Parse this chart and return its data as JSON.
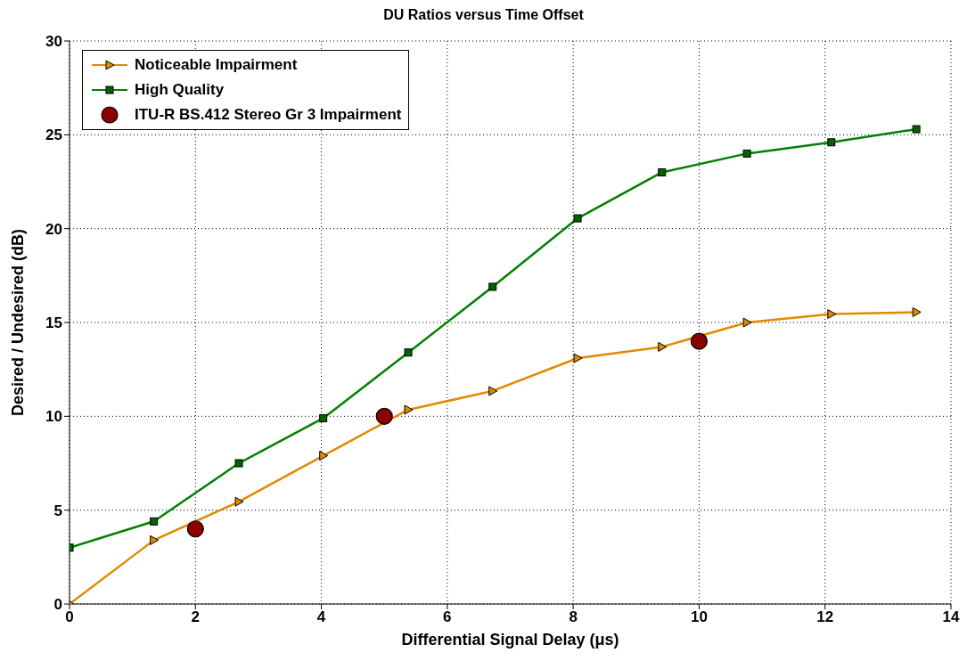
{
  "chart_data": {
    "type": "line",
    "title": "DU Ratios versus Time Offset",
    "xlabel": "Differential Signal Delay (μs)",
    "ylabel": "Desired / Undesired (dB)",
    "xlim": [
      0,
      14
    ],
    "xticks": [
      0,
      2,
      4,
      6,
      8,
      10,
      12,
      14
    ],
    "ylim": [
      0,
      30
    ],
    "yticks": [
      0,
      5,
      10,
      15,
      20,
      25,
      30
    ],
    "grid": true,
    "legend": "top left",
    "line_style": "solid",
    "series": [
      {
        "name": "Noticeable Impairment",
        "color": "#e08a00",
        "marker": "triangle",
        "x": [
          0,
          1.34,
          2.69,
          4.03,
          5.38,
          6.72,
          8.07,
          9.41,
          10.76,
          12.1,
          13.45
        ],
        "values": [
          0,
          3.4,
          5.45,
          7.9,
          10.35,
          11.35,
          13.1,
          13.7,
          15.0,
          15.45,
          15.55
        ]
      },
      {
        "name": "High Quality",
        "color": "#008000",
        "marker": "square",
        "x": [
          0,
          1.34,
          2.69,
          4.03,
          5.38,
          6.72,
          8.07,
          9.41,
          10.76,
          12.1,
          13.45
        ],
        "values": [
          3.0,
          4.4,
          7.5,
          9.9,
          13.4,
          16.9,
          20.55,
          23.0,
          24.0,
          24.6,
          25.3
        ]
      },
      {
        "name": "ITU-R BS.412 Stereo Gr 3 Impairment",
        "type": "scatter",
        "color": "#8b0000",
        "marker": "circle",
        "x": [
          2,
          5,
          10
        ],
        "values": [
          4,
          10,
          14
        ]
      }
    ]
  }
}
